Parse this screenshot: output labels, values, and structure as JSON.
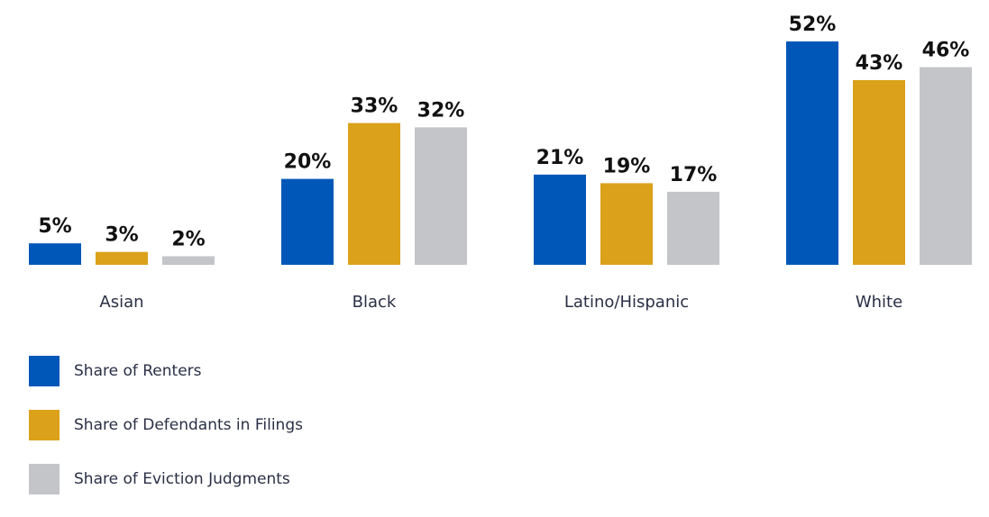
{
  "chart_data": {
    "type": "bar",
    "categories": [
      "Asian",
      "Black",
      "Latino/Hispanic",
      "White"
    ],
    "series": [
      {
        "name": "Share of Renters",
        "color": "#0057B8",
        "values": [
          5,
          20,
          21,
          52
        ]
      },
      {
        "name": "Share of Defendants in Filings",
        "color": "#DBA11A",
        "values": [
          3,
          33,
          19,
          43
        ]
      },
      {
        "name": "Share of Eviction Judgments",
        "color": "#C4C5C9",
        "values": [
          2,
          32,
          17,
          46
        ]
      }
    ],
    "value_suffix": "%",
    "ylim": [
      0,
      52
    ],
    "grid": false,
    "legend_placement": "bottom-left"
  }
}
